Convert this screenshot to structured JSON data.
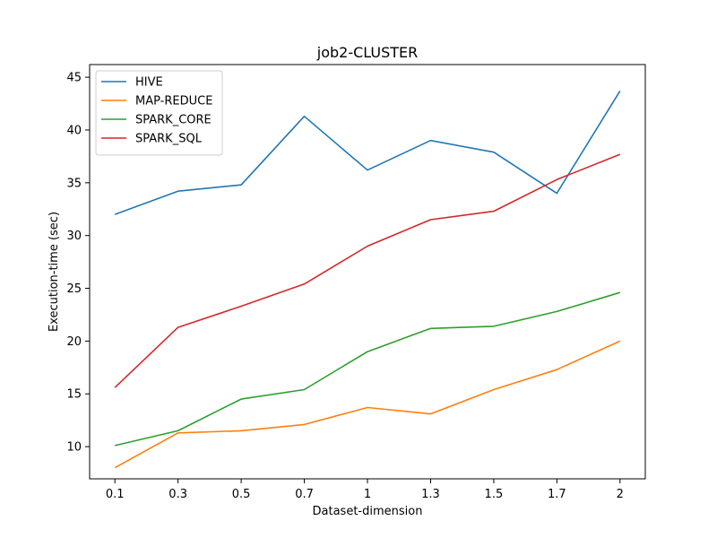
{
  "chart_data": {
    "type": "line",
    "title": "job2-CLUSTER",
    "xlabel": "Dataset-dimension",
    "ylabel": "Execution-time (sec)",
    "categories": [
      "0.1",
      "0.3",
      "0.5",
      "0.7",
      "1",
      "1.3",
      "1.5",
      "1.7",
      "2"
    ],
    "ylim": [
      6.95,
      46.2
    ],
    "yticks": [
      10,
      15,
      20,
      25,
      30,
      35,
      40,
      45
    ],
    "grid": false,
    "legend_position": "top-left",
    "series": [
      {
        "name": "HIVE",
        "color": "#1f77b4",
        "values": [
          32.0,
          34.2,
          34.8,
          41.3,
          36.2,
          39.0,
          37.9,
          34.0,
          43.7
        ]
      },
      {
        "name": "MAP-REDUCE",
        "color": "#ff7f0e",
        "values": [
          8.0,
          11.3,
          11.5,
          12.1,
          13.7,
          13.1,
          15.4,
          17.3,
          20.0
        ]
      },
      {
        "name": "SPARK_CORE",
        "color": "#2ca02c",
        "values": [
          10.1,
          11.5,
          14.5,
          15.4,
          19.0,
          21.2,
          21.4,
          22.8,
          24.6
        ]
      },
      {
        "name": "SPARK_SQL",
        "color": "#d62728",
        "values": [
          15.6,
          21.3,
          23.3,
          25.4,
          29.0,
          31.5,
          32.3,
          35.3,
          37.7
        ]
      }
    ]
  }
}
